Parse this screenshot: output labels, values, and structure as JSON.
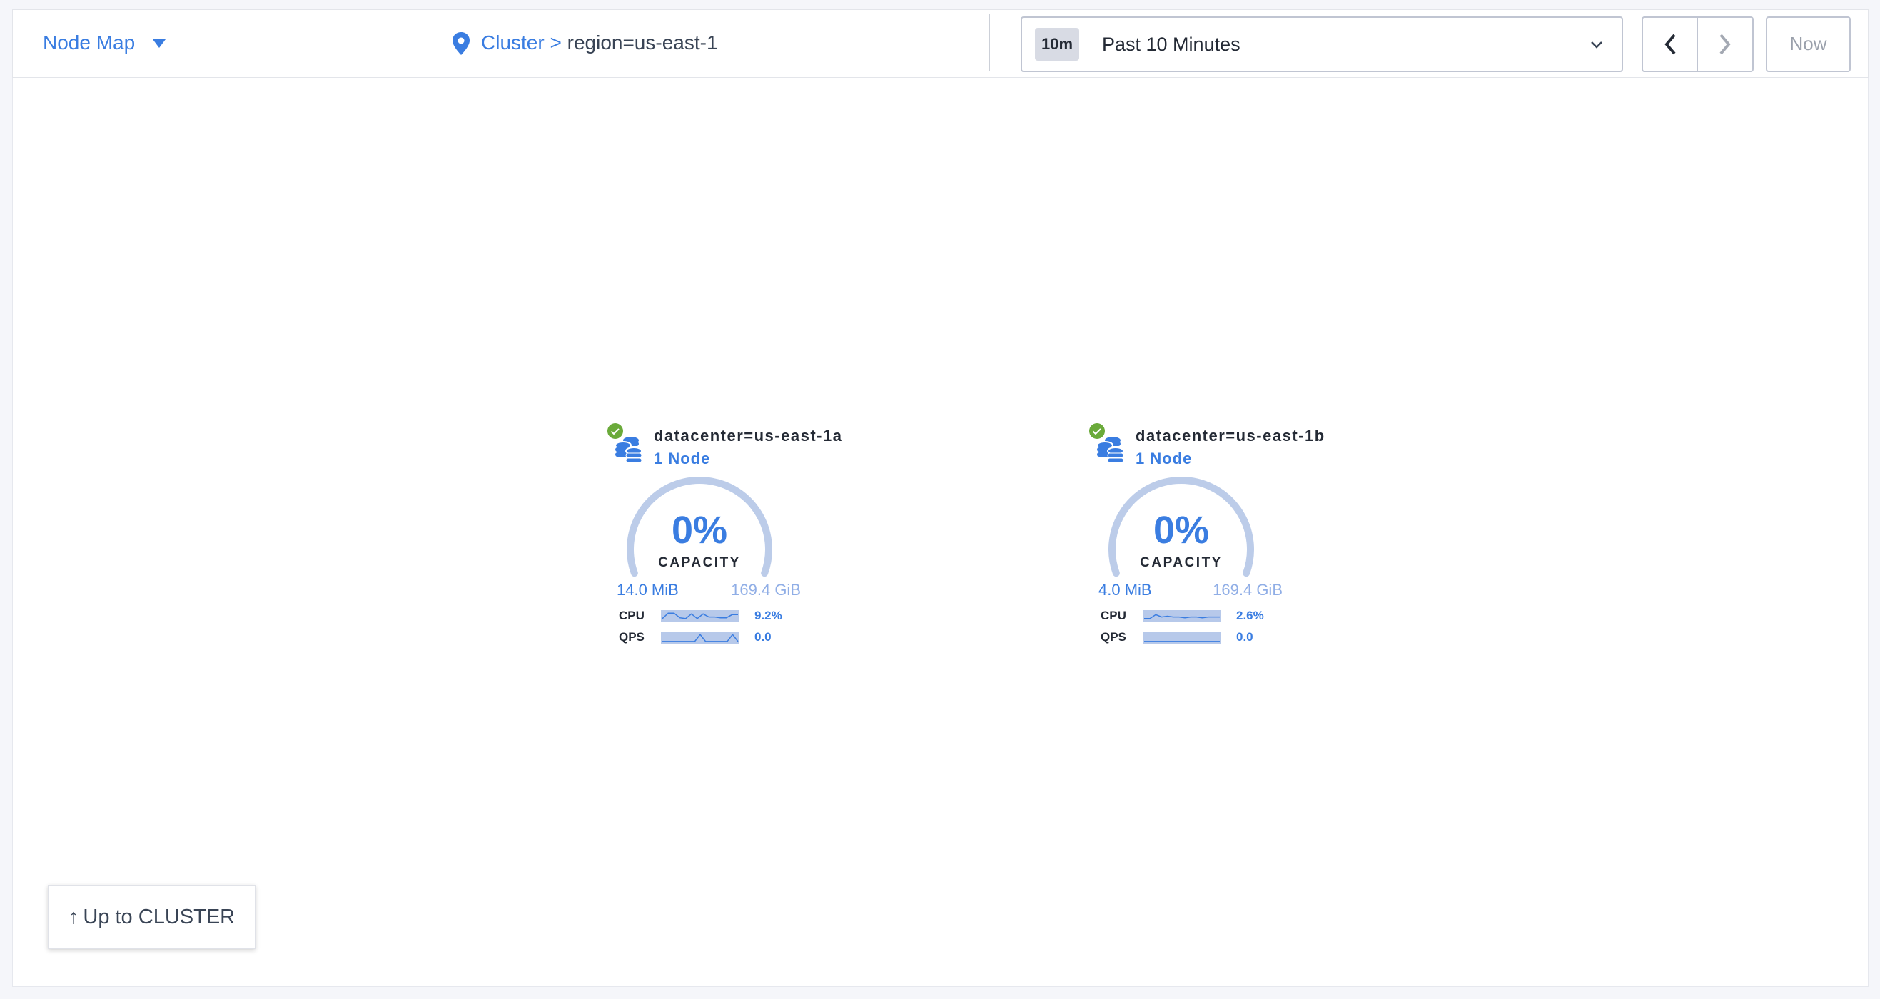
{
  "header": {
    "view_label": "Node Map",
    "breadcrumb": {
      "parent": "Cluster",
      "separator": ">",
      "current": "region=us-east-1"
    },
    "time_range": {
      "badge": "10m",
      "selected": "Past 10 Minutes"
    },
    "now_label": "Now"
  },
  "nodes": [
    {
      "name": "datacenter=us-east-1a",
      "count": "1 Node",
      "status": "healthy",
      "capacity_pct": "0%",
      "capacity_label": "CAPACITY",
      "used": "14.0 MiB",
      "total": "169.4 GiB",
      "cpu_label": "CPU",
      "cpu_value": "9.2%",
      "qps_label": "QPS",
      "qps_value": "0.0",
      "cpu_spark": [
        3,
        10,
        10,
        4,
        3,
        9,
        3,
        9,
        5,
        5,
        4,
        4,
        8,
        8
      ],
      "qps_spark": [
        1,
        1,
        1,
        1,
        1,
        1,
        1,
        10,
        1,
        1,
        1,
        1,
        1,
        10,
        1
      ]
    },
    {
      "name": "datacenter=us-east-1b",
      "count": "1 Node",
      "status": "healthy",
      "capacity_pct": "0%",
      "capacity_label": "CAPACITY",
      "used": "4.0 MiB",
      "total": "169.4 GiB",
      "cpu_label": "CPU",
      "cpu_value": "2.6%",
      "qps_label": "QPS",
      "qps_value": "0.0",
      "cpu_spark": [
        3,
        3,
        8,
        5,
        6,
        5,
        5,
        4,
        5,
        5,
        4,
        5,
        5,
        5
      ],
      "qps_spark": [
        1,
        1,
        1,
        1,
        1,
        1,
        1,
        1,
        1,
        1,
        1,
        1,
        1,
        1,
        1
      ]
    }
  ],
  "up_button": {
    "arrow": "↑",
    "label": "Up to CLUSTER"
  },
  "colors": {
    "accent": "#3a7de1",
    "healthy": "#6aaa3a",
    "gauge_track": "#bccce9"
  }
}
